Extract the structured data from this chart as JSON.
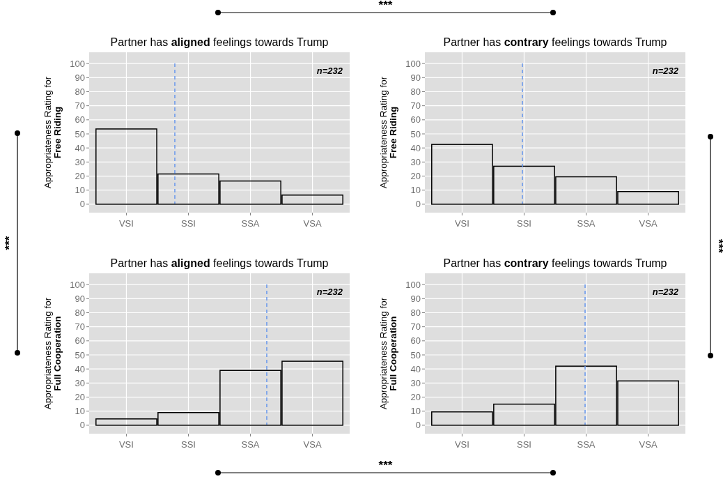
{
  "chart_data": [
    {
      "type": "bar",
      "title": "Partner has aligned feelings towards Trump",
      "ylabel": "Appropriateness Rating for\nFree Riding",
      "categories": [
        "VSI",
        "SSI",
        "SSA",
        "VSA"
      ],
      "values": [
        53.5,
        21.5,
        16.5,
        6.5
      ],
      "color": "#000000",
      "ylim": [
        -6,
        108
      ],
      "yticks": [
        0,
        10,
        20,
        30,
        40,
        50,
        60,
        70,
        80,
        90,
        100
      ],
      "grid": true,
      "annotations": [
        "n=232",
        "***",
        "***"
      ]
    },
    {
      "type": "bar",
      "title": "Partner has contrary feelings towards Trump",
      "ylabel": "Appropriateness Rating for\nFree Riding",
      "categories": [
        "VSI",
        "SSI",
        "SSA",
        "VSA"
      ],
      "values": [
        42.5,
        27,
        19.5,
        9
      ],
      "color": "#000000",
      "ylim": [
        -6,
        108
      ],
      "yticks": [
        0,
        10,
        20,
        30,
        40,
        50,
        60,
        70,
        80,
        90,
        100
      ],
      "grid": true,
      "annotations": [
        "n=232"
      ]
    },
    {
      "type": "bar",
      "title": "Partner has aligned feelings towards Trump",
      "ylabel": "Appropriateness Rating for\nFull Cooperation",
      "categories": [
        "VSI",
        "SSI",
        "SSA",
        "VSA"
      ],
      "values": [
        4.5,
        9,
        39,
        45.5
      ],
      "color": "#000000",
      "ylim": [
        -6,
        108
      ],
      "yticks": [
        0,
        10,
        20,
        30,
        40,
        50,
        60,
        70,
        80,
        90,
        100
      ],
      "grid": true,
      "annotations": [
        "n=232"
      ]
    },
    {
      "type": "bar",
      "title": "Partner has contrary feelings towards Trump",
      "ylabel": "Appropriateness Rating for\nFull Cooperation",
      "categories": [
        "VSI",
        "SSI",
        "SSA",
        "VSA"
      ],
      "values": [
        9.5,
        15,
        42,
        31.5
      ],
      "color": "#000000",
      "ylim": [
        -6,
        108
      ],
      "yticks": [
        0,
        10,
        20,
        30,
        40,
        50,
        60,
        70,
        80,
        90,
        100
      ],
      "grid": true,
      "annotations": [
        "n=232",
        "***",
        "***"
      ]
    }
  ]
}
